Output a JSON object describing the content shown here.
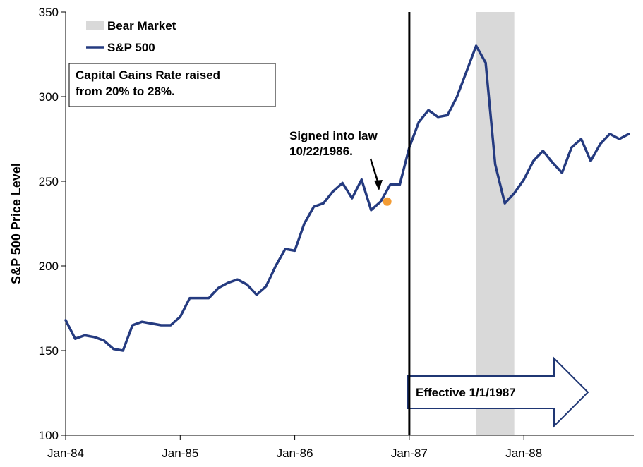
{
  "chart_data": {
    "type": "line",
    "title": "",
    "xlabel": "",
    "ylabel": "S&P 500 Price Level",
    "ylim": [
      100,
      350
    ],
    "yticks": [
      "100",
      "150",
      "200",
      "250",
      "300",
      "350"
    ],
    "xticks": [
      "Jan-84",
      "Jan-85",
      "Jan-86",
      "Jan-87",
      "Jan-88"
    ],
    "xlim": [
      "1984-01",
      "1988-12"
    ],
    "grid": false,
    "legend_position": "top-left",
    "legend": [
      {
        "label": "Bear Market",
        "swatch": "box",
        "color": "#d9d9d9"
      },
      {
        "label": "S&P 500",
        "swatch": "line",
        "color": "#253b80"
      }
    ],
    "shaded_region": {
      "name": "Bear Market",
      "start": "1987-08",
      "end": "1987-12",
      "color": "#d9d9d9"
    },
    "vertical_line": {
      "x": "1987-01-01",
      "color": "#000000"
    },
    "series": [
      {
        "name": "S&P 500",
        "color": "#253b80",
        "x": [
          "1984-01",
          "1984-02",
          "1984-03",
          "1984-04",
          "1984-05",
          "1984-06",
          "1984-07",
          "1984-08",
          "1984-09",
          "1984-10",
          "1984-11",
          "1984-12",
          "1985-01",
          "1985-02",
          "1985-03",
          "1985-04",
          "1985-05",
          "1985-06",
          "1985-07",
          "1985-08",
          "1985-09",
          "1985-10",
          "1985-11",
          "1985-12",
          "1986-01",
          "1986-02",
          "1986-03",
          "1986-04",
          "1986-05",
          "1986-06",
          "1986-07",
          "1986-08",
          "1986-09",
          "1986-10",
          "1986-11",
          "1986-12",
          "1987-01",
          "1987-02",
          "1987-03",
          "1987-04",
          "1987-05",
          "1987-06",
          "1987-07",
          "1987-08",
          "1987-09",
          "1987-10",
          "1987-11",
          "1987-12",
          "1988-01",
          "1988-02",
          "1988-03",
          "1988-04",
          "1988-05",
          "1988-06",
          "1988-07",
          "1988-08",
          "1988-09",
          "1988-10",
          "1988-11",
          "1988-12"
        ],
        "values": [
          168,
          157,
          159,
          158,
          156,
          151,
          150,
          165,
          167,
          166,
          165,
          165,
          170,
          181,
          181,
          181,
          187,
          190,
          192,
          189,
          183,
          188,
          200,
          210,
          209,
          225,
          235,
          237,
          244,
          249,
          240,
          251,
          233,
          238,
          248,
          248,
          270,
          285,
          292,
          288,
          289,
          300,
          315,
          330,
          320,
          260,
          237,
          243,
          251,
          262,
          268,
          261,
          255,
          270,
          275,
          262,
          272,
          278,
          275,
          278
        ]
      }
    ],
    "annotations": [
      {
        "text": "Capital Gains Rate raised from 20% to 28%.",
        "lines": [
          "Capital Gains Rate raised",
          "from 20% to 28%."
        ]
      },
      {
        "text": "Signed into law 10/22/1986.",
        "lines": [
          "Signed into law",
          "10/22/1986."
        ],
        "point": {
          "x": "1986-10-22",
          "y": 238
        }
      },
      {
        "text": "Effective 1/1/1987",
        "shape": "arrow"
      }
    ]
  }
}
